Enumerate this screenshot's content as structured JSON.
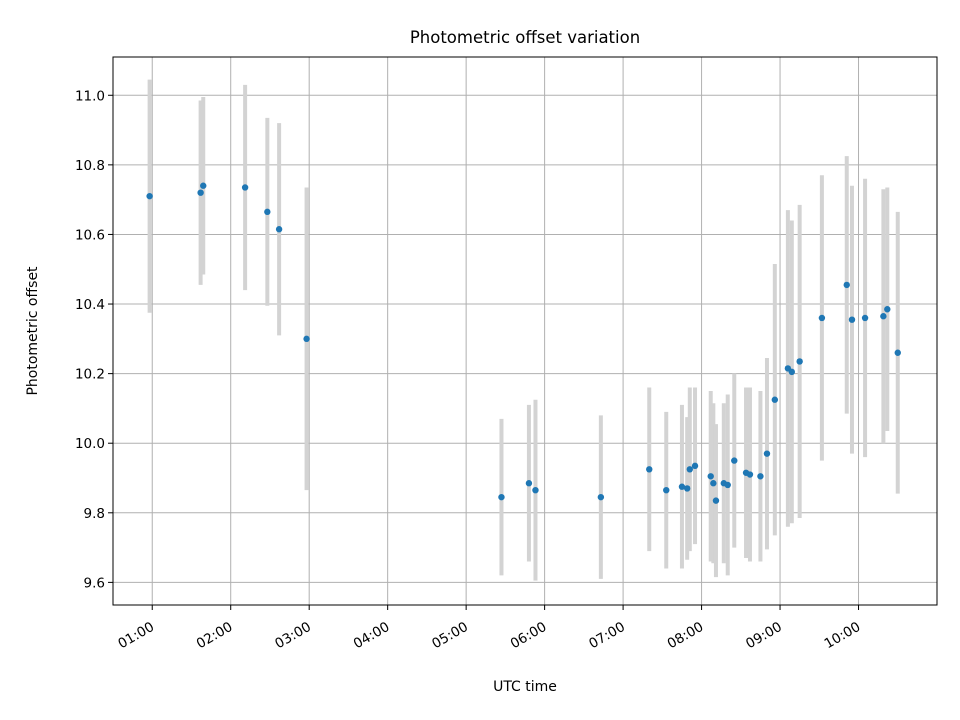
{
  "chart_data": {
    "type": "scatter",
    "title": "Photometric offset variation",
    "xlabel": "UTC time",
    "ylabel": "Photometric offset",
    "xlim": [
      "00:30",
      "11:00"
    ],
    "ylim": [
      9.535,
      11.11
    ],
    "grid": true,
    "x_ticks": [
      "01:00",
      "02:00",
      "03:00",
      "04:00",
      "05:00",
      "06:00",
      "07:00",
      "08:00",
      "09:00",
      "10:00"
    ],
    "y_ticks": [
      "9.6",
      "9.8",
      "10.0",
      "10.2",
      "10.4",
      "10.6",
      "10.8",
      "11.0"
    ],
    "colors": {
      "point": "#1f77b4",
      "errorbar": "#d3d3d3",
      "grid": "#b0b0b0"
    },
    "series": [
      {
        "points": [
          {
            "t": "00:58",
            "y": 10.71,
            "err": 0.335
          },
          {
            "t": "01:37",
            "y": 10.72,
            "err": 0.265
          },
          {
            "t": "01:39",
            "y": 10.74,
            "err": 0.255
          },
          {
            "t": "02:11",
            "y": 10.735,
            "err": 0.295
          },
          {
            "t": "02:28",
            "y": 10.665,
            "err": 0.27
          },
          {
            "t": "02:37",
            "y": 10.615,
            "err": 0.305
          },
          {
            "t": "02:58",
            "y": 10.3,
            "err": 0.435
          },
          {
            "t": "05:27",
            "y": 9.845,
            "err": 0.225
          },
          {
            "t": "05:48",
            "y": 9.885,
            "err": 0.225
          },
          {
            "t": "05:53",
            "y": 9.865,
            "err": 0.26
          },
          {
            "t": "06:43",
            "y": 9.845,
            "err": 0.235
          },
          {
            "t": "07:20",
            "y": 9.925,
            "err": 0.235
          },
          {
            "t": "07:33",
            "y": 9.865,
            "err": 0.225
          },
          {
            "t": "07:45",
            "y": 9.875,
            "err": 0.235
          },
          {
            "t": "07:49",
            "y": 9.87,
            "err": 0.205
          },
          {
            "t": "07:51",
            "y": 9.925,
            "err": 0.235
          },
          {
            "t": "07:55",
            "y": 9.935,
            "err": 0.225
          },
          {
            "t": "08:07",
            "y": 9.905,
            "err": 0.245
          },
          {
            "t": "08:09",
            "y": 9.885,
            "err": 0.23
          },
          {
            "t": "08:11",
            "y": 9.835,
            "err": 0.22
          },
          {
            "t": "08:17",
            "y": 9.885,
            "err": 0.23
          },
          {
            "t": "08:20",
            "y": 9.88,
            "err": 0.26
          },
          {
            "t": "08:25",
            "y": 9.95,
            "err": 0.25
          },
          {
            "t": "08:34",
            "y": 9.915,
            "err": 0.245
          },
          {
            "t": "08:37",
            "y": 9.91,
            "err": 0.25
          },
          {
            "t": "08:45",
            "y": 9.905,
            "err": 0.245
          },
          {
            "t": "08:50",
            "y": 9.97,
            "err": 0.275
          },
          {
            "t": "08:56",
            "y": 10.125,
            "err": 0.39
          },
          {
            "t": "09:06",
            "y": 10.215,
            "err": 0.455
          },
          {
            "t": "09:09",
            "y": 10.205,
            "err": 0.435
          },
          {
            "t": "09:15",
            "y": 10.235,
            "err": 0.45
          },
          {
            "t": "09:32",
            "y": 10.36,
            "err": 0.41
          },
          {
            "t": "09:51",
            "y": 10.455,
            "err": 0.37
          },
          {
            "t": "09:55",
            "y": 10.355,
            "err": 0.385
          },
          {
            "t": "10:05",
            "y": 10.36,
            "err": 0.4
          },
          {
            "t": "10:19",
            "y": 10.365,
            "err": 0.365
          },
          {
            "t": "10:22",
            "y": 10.385,
            "err": 0.35
          },
          {
            "t": "10:30",
            "y": 10.26,
            "err": 0.405
          }
        ]
      }
    ]
  }
}
